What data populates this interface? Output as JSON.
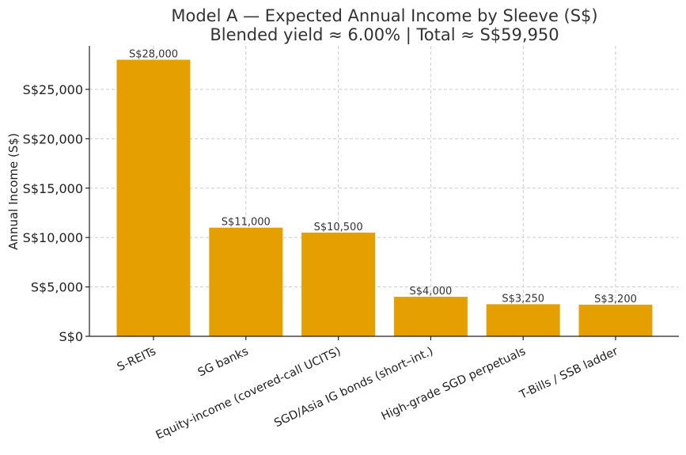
{
  "chart_data": {
    "type": "bar",
    "title": "Model A — Expected Annual Income by Sleeve (S$)",
    "subtitle": "Blended yield ≈ 6.00%  |  Total ≈ S$59,950",
    "xlabel": "",
    "ylabel": "Annual Income (S$)",
    "categories": [
      "S-REITs",
      "SG banks",
      "Equity-income (covered-call UCITS)",
      "SGD/Asia IG bonds (short–int.)",
      "High-grade SGD perpetuals",
      "T-Bills / SSB ladder"
    ],
    "values": [
      28000,
      11000,
      10500,
      4000,
      3250,
      3200
    ],
    "data_labels": [
      "S$28,000",
      "S$11,000",
      "S$10,500",
      "S$4,000",
      "S$3,250",
      "S$3,200"
    ],
    "yticks": [
      0,
      5000,
      10000,
      15000,
      20000,
      25000
    ],
    "ytick_labels": [
      "S$0",
      "S$5,000",
      "S$10,000",
      "S$15,000",
      "S$20,000",
      "S$25,000"
    ],
    "ylim": [
      0,
      29400
    ],
    "grid": true,
    "bar_color": "#E5A000"
  }
}
